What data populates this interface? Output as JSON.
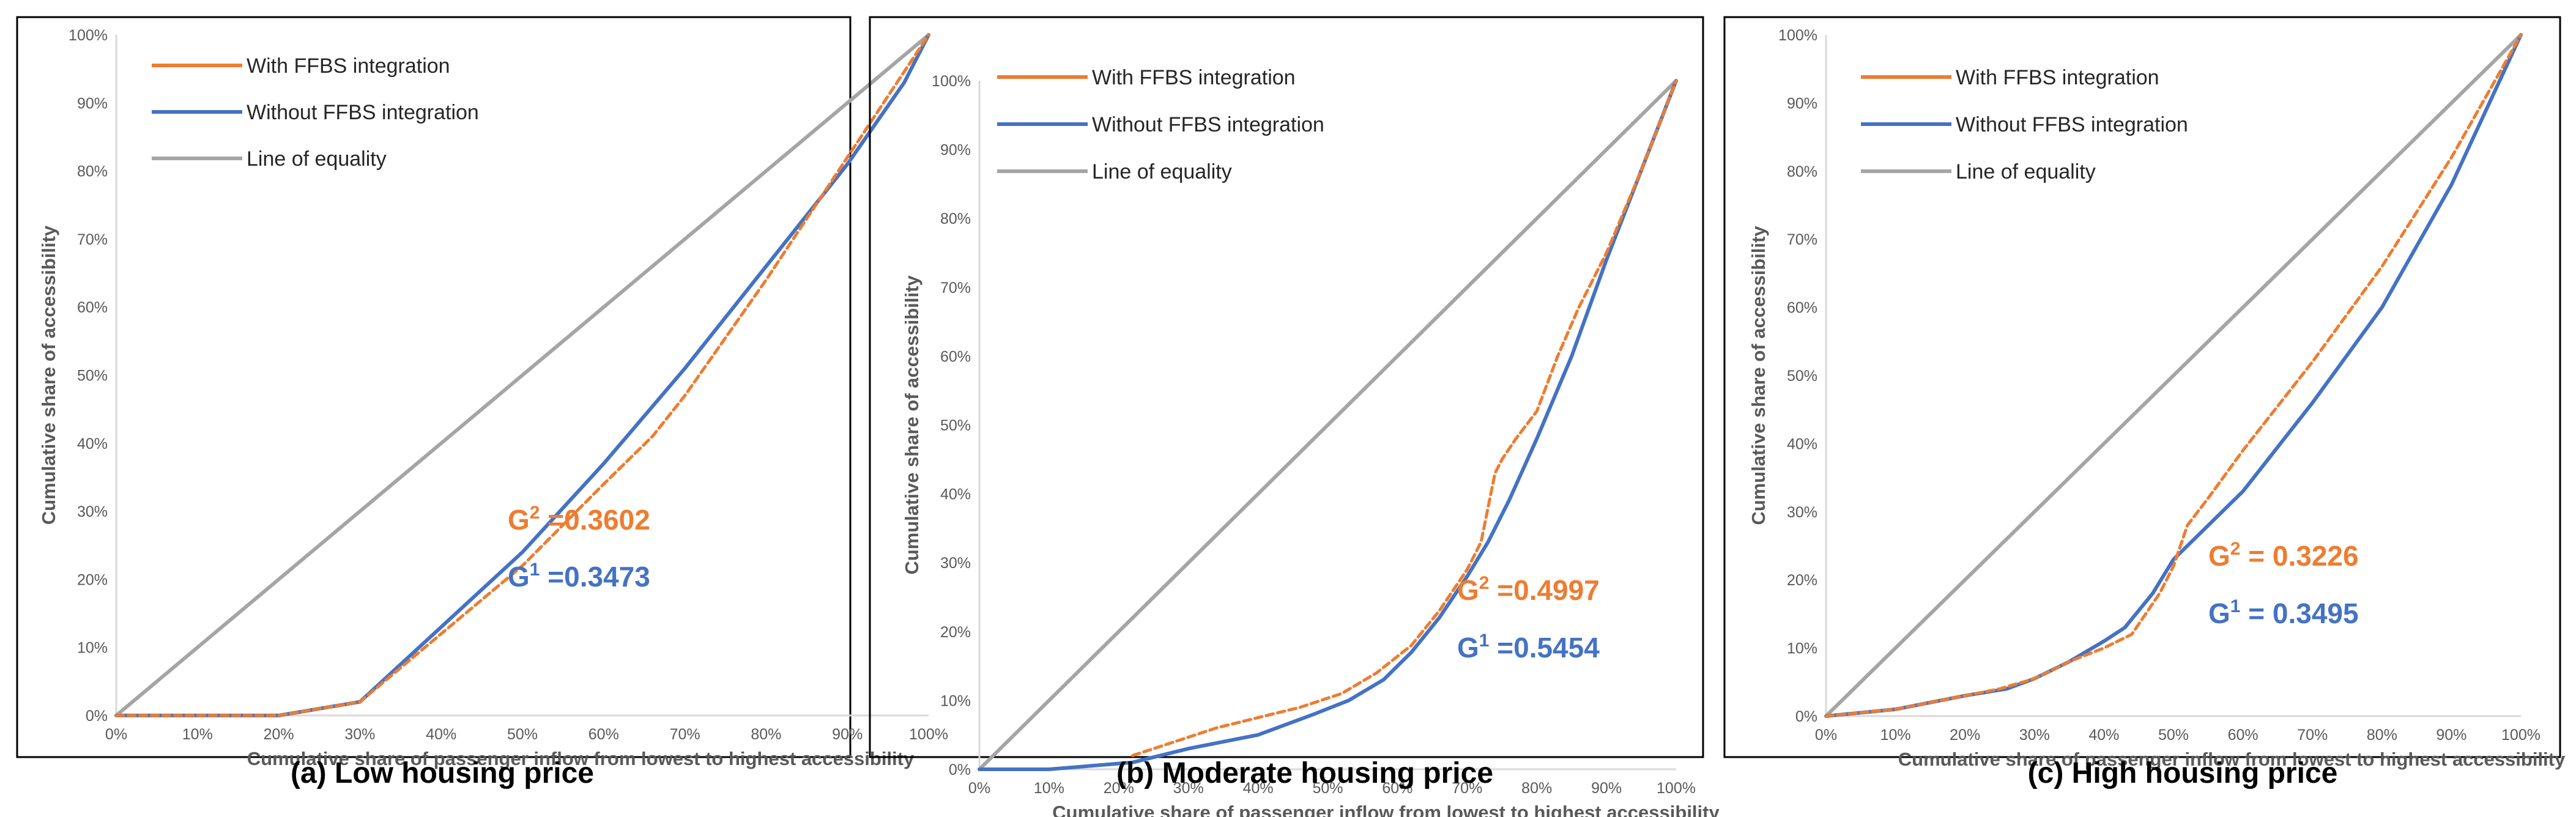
{
  "colors": {
    "with": "#ED7D31",
    "without": "#4472C4",
    "equality": "#A5A5A5",
    "frame": "#000000",
    "axis": "#D9D9D9"
  },
  "chart_data": [
    {
      "type": "line",
      "caption": "(a) Low housing price",
      "xlabel": "Cumulative share of passenger inflow from lowest to highest accessibility",
      "ylabel": "Cumulative share of accessibility",
      "x_ticks": [
        "0%",
        "10%",
        "20%",
        "30%",
        "40%",
        "50%",
        "60%",
        "70%",
        "80%",
        "90%",
        "100%"
      ],
      "y_ticks": [
        "0%",
        "10%",
        "20%",
        "30%",
        "40%",
        "50%",
        "60%",
        "70%",
        "80%",
        "90%",
        "100%"
      ],
      "xlim": [
        0,
        100
      ],
      "ylim": [
        0,
        100
      ],
      "legend": [
        "With FFBS integration",
        "Without FFBS integration",
        "Line of equality"
      ],
      "legend_position": "top-left",
      "annotations": [
        {
          "prefix": "G",
          "sup": "2",
          "text": " =0.3602",
          "series": "with"
        },
        {
          "prefix": "G",
          "sup": "1",
          "text": " =0.3473",
          "series": "without"
        }
      ],
      "series": [
        {
          "name": "With FFBS integration",
          "key": "with",
          "dash": true,
          "x": [
            0,
            10,
            20,
            30,
            40,
            50,
            60,
            66,
            70,
            80,
            90,
            100
          ],
          "y": [
            0,
            0,
            0,
            2,
            12,
            22,
            34,
            41,
            47,
            64,
            82,
            100
          ]
        },
        {
          "name": "Without FFBS integration",
          "key": "without",
          "dash": false,
          "x": [
            0,
            10,
            20,
            30,
            40,
            50,
            60,
            65,
            70,
            80,
            90,
            97,
            100
          ],
          "y": [
            0,
            0,
            0,
            2,
            13,
            24,
            37,
            44,
            51,
            66,
            81,
            93,
            100
          ]
        },
        {
          "name": "Line of equality",
          "key": "equality",
          "dash": false,
          "x": [
            0,
            100
          ],
          "y": [
            0,
            100
          ]
        }
      ]
    },
    {
      "type": "line",
      "caption": "(b) Moderate housing price",
      "xlabel": "Cumulative share of passenger inflow from lowest to highest accessibility",
      "ylabel": "Cumulative share of accessibility",
      "x_ticks": [
        "0%",
        "10%",
        "20%",
        "30%",
        "40%",
        "50%",
        "60%",
        "70%",
        "80%",
        "90%",
        "100%"
      ],
      "y_ticks": [
        "0%",
        "10%",
        "20%",
        "30%",
        "40%",
        "50%",
        "60%",
        "70%",
        "80%",
        "90%",
        "100%"
      ],
      "xlim": [
        0,
        100
      ],
      "ylim": [
        0,
        100
      ],
      "legend": [
        "With FFBS integration",
        "Without FFBS integration",
        "Line of equality"
      ],
      "legend_position": "top-left",
      "annotations": [
        {
          "prefix": "G",
          "sup": "2",
          "text": " =0.4997",
          "series": "with"
        },
        {
          "prefix": "G",
          "sup": "1",
          "text": " =0.5454",
          "series": "without"
        }
      ],
      "series": [
        {
          "name": "With FFBS integration",
          "key": "with",
          "dash": true,
          "x": [
            22,
            28,
            34,
            40,
            46,
            52,
            57,
            62,
            66,
            70,
            72,
            73,
            74,
            75,
            77,
            80,
            83,
            86,
            90,
            95,
            100
          ],
          "y": [
            2,
            4,
            6,
            7.5,
            9,
            11,
            14,
            18,
            23,
            29,
            33,
            38,
            43,
            45,
            48,
            52,
            60,
            67,
            75,
            87,
            100
          ]
        },
        {
          "name": "Without FFBS integration",
          "key": "without",
          "dash": false,
          "x": [
            0,
            10,
            22,
            30,
            40,
            48,
            53,
            58,
            62,
            66,
            70,
            73,
            76,
            80,
            85,
            90,
            95,
            100
          ],
          "y": [
            0,
            0,
            1,
            3,
            5,
            8,
            10,
            13,
            17,
            22,
            28,
            33,
            39,
            48,
            60,
            74,
            87,
            100
          ]
        },
        {
          "name": "Line of equality",
          "key": "equality",
          "dash": false,
          "x": [
            0,
            100
          ],
          "y": [
            0,
            100
          ]
        }
      ]
    },
    {
      "type": "line",
      "caption": "(c) High housing price",
      "xlabel": "Cumulative share of passenger inflow from lowest to highest accessibility",
      "ylabel": "Cumulative share of accessibility",
      "x_ticks": [
        "0%",
        "10%",
        "20%",
        "30%",
        "40%",
        "50%",
        "60%",
        "70%",
        "80%",
        "90%",
        "100%"
      ],
      "y_ticks": [
        "0%",
        "10%",
        "20%",
        "30%",
        "40%",
        "50%",
        "60%",
        "70%",
        "80%",
        "90%",
        "100%"
      ],
      "xlim": [
        0,
        100
      ],
      "ylim": [
        0,
        100
      ],
      "legend": [
        "With FFBS integration",
        "Without FFBS integration",
        "Line of equality"
      ],
      "legend_position": "top-left",
      "annotations": [
        {
          "prefix": "G",
          "sup": "2",
          "text": " = 0.3226",
          "series": "with"
        },
        {
          "prefix": "G",
          "sup": "1",
          "text": " = 0.3495",
          "series": "without"
        }
      ],
      "series": [
        {
          "name": "With FFBS integration",
          "key": "with",
          "dash": true,
          "x": [
            0,
            10,
            20,
            25,
            30,
            35,
            40,
            44,
            48,
            50,
            52,
            55,
            60,
            70,
            80,
            90,
            100
          ],
          "y": [
            0,
            1,
            3,
            4,
            5.5,
            8,
            10,
            12,
            18,
            22,
            28,
            32,
            39,
            52,
            66,
            82,
            100
          ]
        },
        {
          "name": "Without FFBS integration",
          "key": "without",
          "dash": false,
          "x": [
            0,
            10,
            20,
            26,
            30,
            35,
            40,
            43,
            47,
            50,
            53,
            60,
            70,
            80,
            90,
            100
          ],
          "y": [
            0,
            1,
            3,
            4,
            5.5,
            8,
            11,
            13,
            18,
            23,
            26,
            33,
            46,
            60,
            78,
            100
          ]
        },
        {
          "name": "Line of equality",
          "key": "equality",
          "dash": false,
          "x": [
            0,
            100
          ],
          "y": [
            0,
            100
          ]
        }
      ]
    }
  ]
}
